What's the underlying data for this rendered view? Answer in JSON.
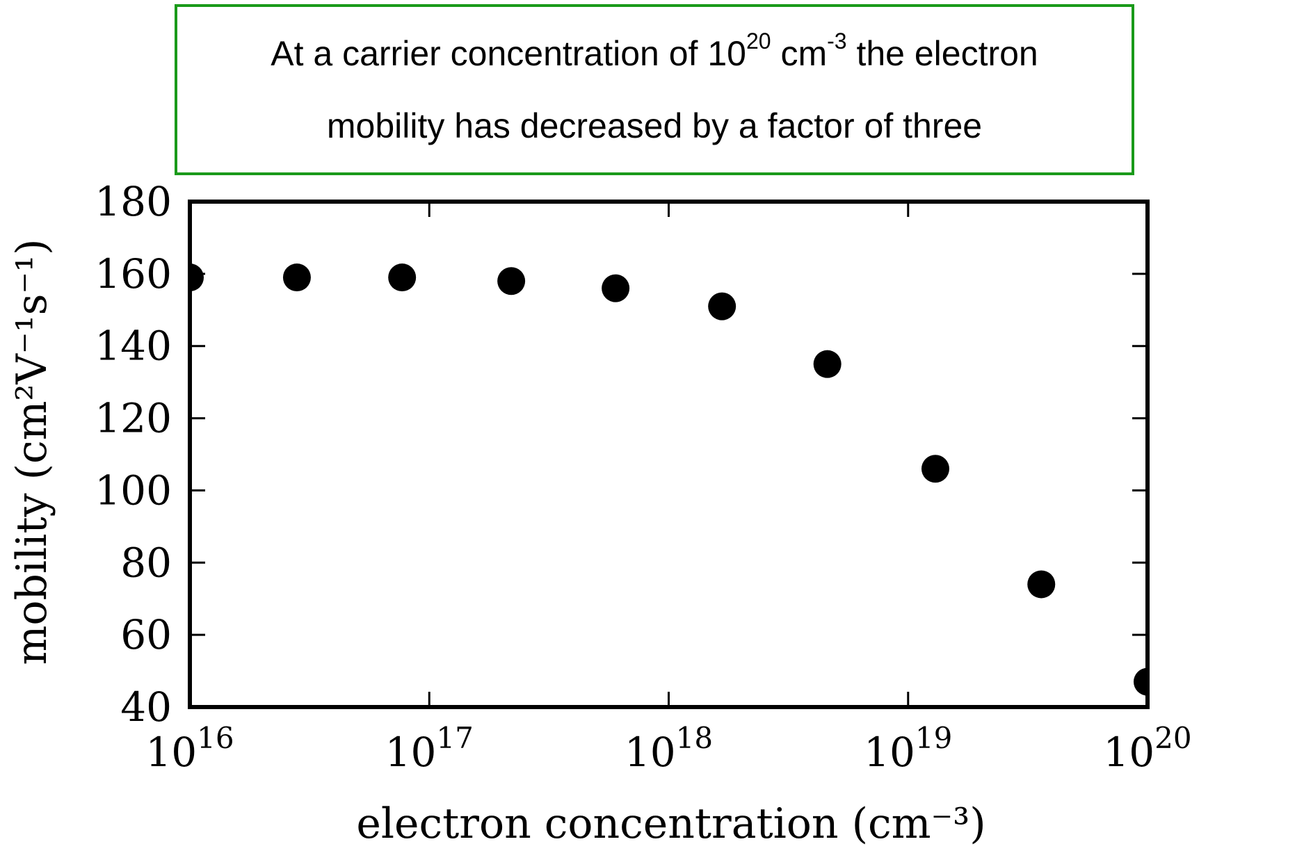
{
  "annotation": {
    "line1_a": "At a carrier concentration of 10",
    "line1_exp1": "20",
    "line1_b": " cm",
    "line1_exp2": "-3",
    "line1_c": " the electron",
    "line2": "mobility has decreased by a factor of three",
    "border_color": "#1a9a1a"
  },
  "chart_data": {
    "type": "scatter",
    "title": "",
    "xlabel": "electron concentration (cm⁻³)",
    "ylabel": "mobility (cm²V⁻¹s⁻¹)",
    "xscale": "log",
    "xlim": [
      1e+16,
      1e+20
    ],
    "ylim": [
      40,
      180
    ],
    "x_ticks": [
      {
        "value": 1e+16,
        "base": "10",
        "exp": "16"
      },
      {
        "value": 1e+17,
        "base": "10",
        "exp": "17"
      },
      {
        "value": 1e+18,
        "base": "10",
        "exp": "18"
      },
      {
        "value": 1e+19,
        "base": "10",
        "exp": "19"
      },
      {
        "value": 1e+20,
        "base": "10",
        "exp": "20"
      }
    ],
    "y_ticks": [
      40,
      60,
      80,
      100,
      120,
      140,
      160,
      180
    ],
    "grid": false,
    "marker_color": "#000000",
    "points": [
      {
        "x": 1e+16,
        "y": 159
      },
      {
        "x": 2.8e+16,
        "y": 159
      },
      {
        "x": 7.7e+16,
        "y": 159
      },
      {
        "x": 2.2e+17,
        "y": 158
      },
      {
        "x": 6e+17,
        "y": 156
      },
      {
        "x": 1.67e+18,
        "y": 151
      },
      {
        "x": 4.6e+18,
        "y": 135
      },
      {
        "x": 1.3e+19,
        "y": 106
      },
      {
        "x": 3.6e+19,
        "y": 74
      },
      {
        "x": 1e+20,
        "y": 47
      }
    ]
  }
}
